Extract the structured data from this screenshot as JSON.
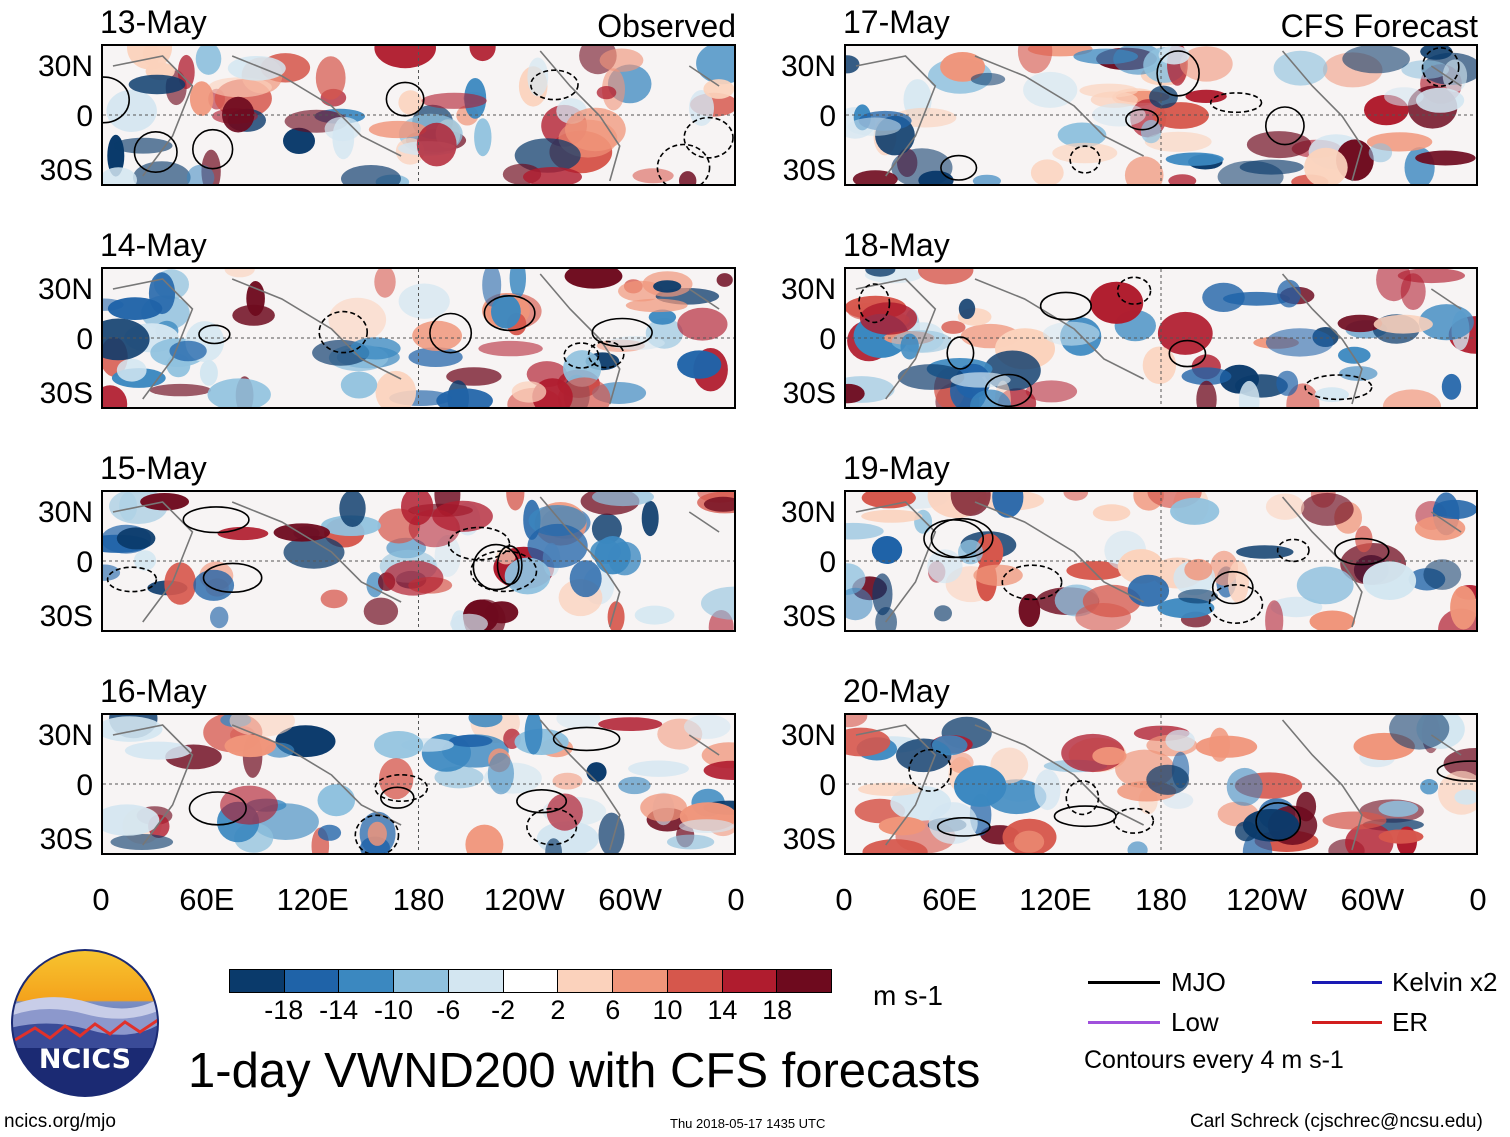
{
  "headers": {
    "left": "Observed",
    "right": "CFS Forecast"
  },
  "panels": {
    "observed": [
      {
        "date": "13-May"
      },
      {
        "date": "14-May"
      },
      {
        "date": "15-May"
      },
      {
        "date": "16-May"
      }
    ],
    "forecast": [
      {
        "date": "17-May"
      },
      {
        "date": "18-May"
      },
      {
        "date": "19-May"
      },
      {
        "date": "20-May"
      }
    ]
  },
  "lat_labels": [
    "30N",
    "0",
    "30S"
  ],
  "lon_labels": [
    "0",
    "60E",
    "120E",
    "180",
    "120W",
    "60W",
    "0"
  ],
  "colorbar": {
    "ticks": [
      "-18",
      "-14",
      "-10",
      "-6",
      "-2",
      "2",
      "6",
      "10",
      "14",
      "18"
    ],
    "colors": [
      "#0a3a6b",
      "#1f63a8",
      "#3b88c0",
      "#8fc1de",
      "#d3e6f1",
      "#ffffff",
      "#fbd2bc",
      "#f0957a",
      "#d6574c",
      "#b01c2e",
      "#6e0a1e"
    ],
    "units": "m s-1"
  },
  "legend": {
    "items": [
      {
        "label": "MJO",
        "color": "#000000"
      },
      {
        "label": "Kelvin x2",
        "color": "#1a1ab4"
      },
      {
        "label": "Low",
        "color": "#a050dc"
      },
      {
        "label": "ER",
        "color": "#d21e1e"
      }
    ],
    "note": "Contours every 4 m s-1"
  },
  "title": "1-day VWND200 with CFS forecasts",
  "logo_text": "NCICS",
  "footer": {
    "url": "ncics.org/mjo",
    "timestamp": "Thu 2018-05-17 1435 UTC",
    "credit": "Carl Schreck (cjschrec@ncsu.edu)"
  }
}
